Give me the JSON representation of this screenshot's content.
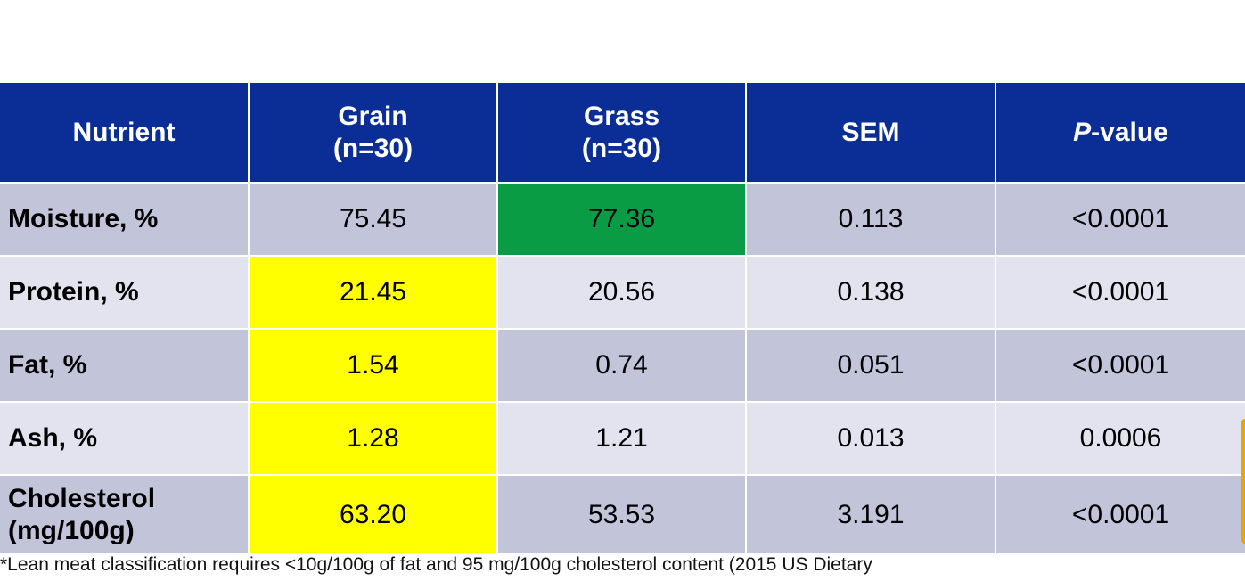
{
  "table": {
    "headers": [
      {
        "line1": "Nutrient",
        "line2": ""
      },
      {
        "line1": "Grain",
        "line2": "(n=30)"
      },
      {
        "line1": "Grass",
        "line2": "(n=30)"
      },
      {
        "line1": "SEM",
        "line2": ""
      },
      {
        "italic_prefix": "P",
        "line1": "-value",
        "line2": ""
      }
    ],
    "rows": [
      {
        "label_line1": "Moisture, %",
        "label_line2": "",
        "grain": "75.45",
        "grass": "77.36",
        "sem": "0.113",
        "p": "<0.0001"
      },
      {
        "label_line1": "Protein, %",
        "label_line2": "",
        "grain": "21.45",
        "grass": "20.56",
        "sem": "0.138",
        "p": "<0.0001"
      },
      {
        "label_line1": "Fat, %",
        "label_line2": "",
        "grain": "1.54",
        "grass": "0.74",
        "sem": "0.051",
        "p": "<0.0001"
      },
      {
        "label_line1": "Ash, %",
        "label_line2": "",
        "grain": "1.28",
        "grass": "1.21",
        "sem": "0.013",
        "p": "0.0006"
      },
      {
        "label_line1": "Cholesterol",
        "label_line2": "(mg/100g)",
        "grain": "63.20",
        "grass": "53.53",
        "sem": "3.191",
        "p": "<0.0001"
      }
    ]
  },
  "highlight_colors": {
    "header": "#0a2e96",
    "grain_higher": "#ffff00",
    "grass_higher": "#0a9b45"
  },
  "footnote": "*Lean meat classification requires <10g/100g of fat and 95 mg/100g cholesterol content (2015 US Dietary"
}
